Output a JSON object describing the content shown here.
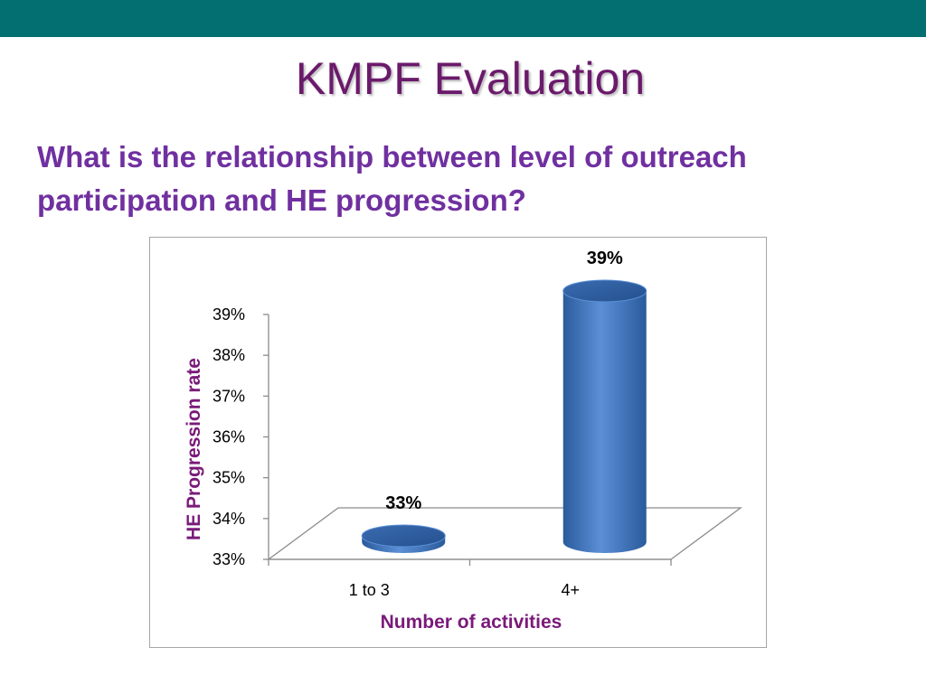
{
  "slide": {
    "title": "KMPF Evaluation",
    "question": "What is the relationship between level of outreach participation and HE progression?"
  },
  "colors": {
    "band": "#046f70",
    "title": "#6b1a6b",
    "question": "#7030a0",
    "bar_light": "#5b8fd6",
    "bar_dark": "#2a5b9c",
    "axis_title": "#7a1a7a"
  },
  "chart_data": {
    "type": "bar",
    "style": "3d-cylinder",
    "categories": [
      "1 to 3",
      "4+"
    ],
    "values": [
      33,
      39
    ],
    "data_labels": [
      "33%",
      "39%"
    ],
    "xlabel": "Number of activities",
    "ylabel": "HE Progression rate",
    "ylim": [
      33,
      39
    ],
    "yticks": [
      "33%",
      "34%",
      "35%",
      "36%",
      "37%",
      "38%",
      "39%"
    ],
    "grid": false,
    "legend": "none"
  }
}
